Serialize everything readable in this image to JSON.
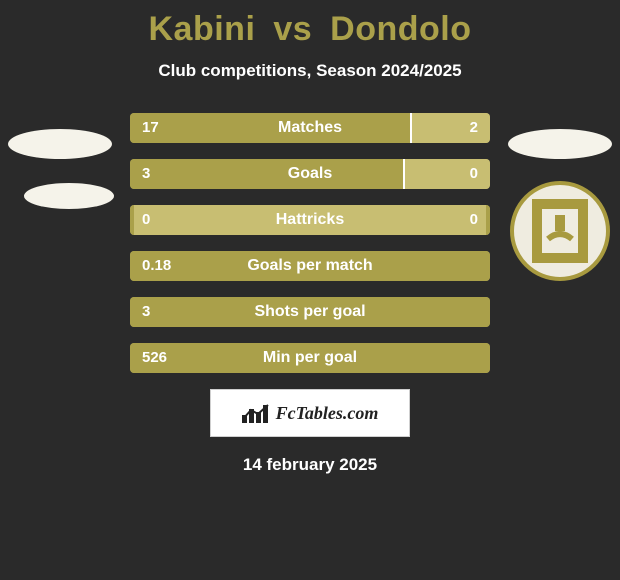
{
  "title": {
    "player1": "Kabini",
    "vs": "vs",
    "player2": "Dondolo",
    "color": "#aaa04a"
  },
  "subtitle": "Club competitions, Season 2024/2025",
  "theme": {
    "page_bg": "#2a2a2a",
    "bar_color_p1": "#aaa04a",
    "bar_color_p2": "#c8be72",
    "bar_divider": "#ffffff",
    "text_on_bar": "#ffffff",
    "logo_left_fill": "#f5f3ea",
    "logo_right_stroke": "#a89a3f",
    "logo_right_bg": "#efece0"
  },
  "stats": [
    {
      "label": "Matches",
      "v1": "17",
      "v2": "2",
      "pct1": 78
    },
    {
      "label": "Goals",
      "v1": "3",
      "v2": "0",
      "pct1": 76
    },
    {
      "label": "Hattricks",
      "v1": "0",
      "v2": "0",
      "pct1": 0
    },
    {
      "label": "Goals per match",
      "v1": "0.18",
      "v2": "",
      "pct1": 100
    },
    {
      "label": "Shots per goal",
      "v1": "3",
      "v2": "",
      "pct1": 100
    },
    {
      "label": "Min per goal",
      "v1": "526",
      "v2": "",
      "pct1": 100
    }
  ],
  "badge_text": "FcTables.com",
  "date": "14 february 2025"
}
